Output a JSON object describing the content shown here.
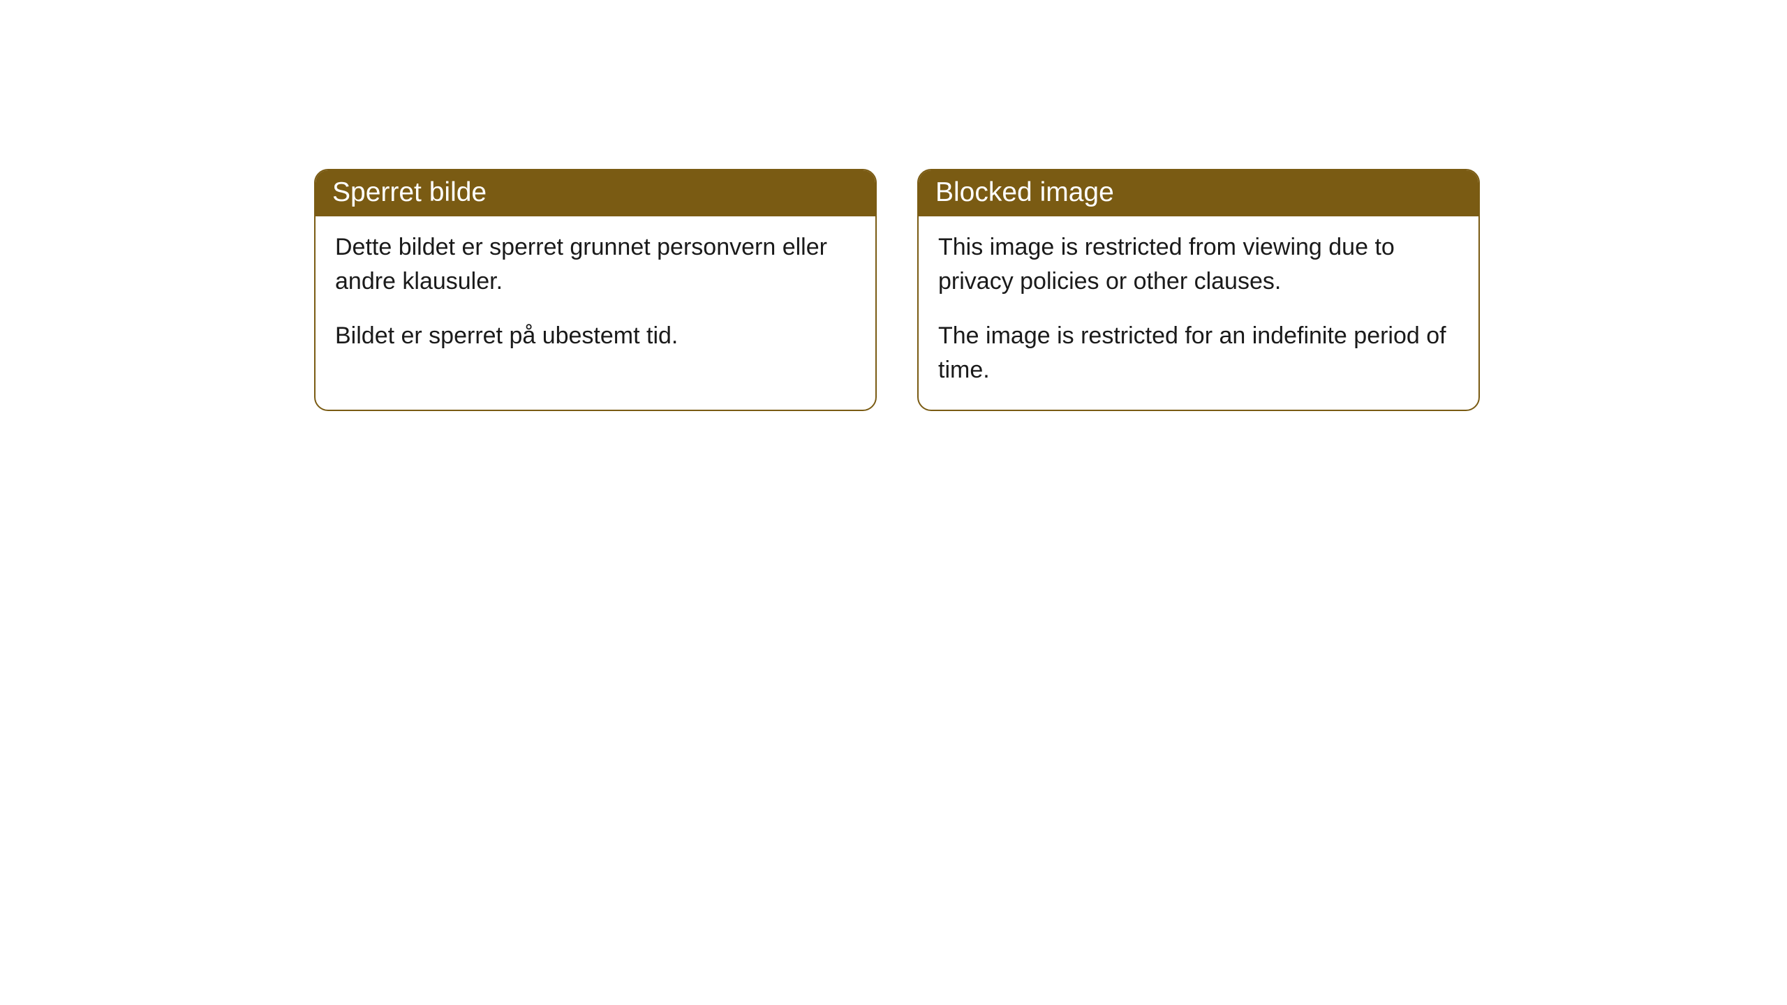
{
  "cards": [
    {
      "title": "Sperret bilde",
      "paragraph1": "Dette bildet er sperret grunnet personvern eller andre klausuler.",
      "paragraph2": "Bildet er sperret på ubestemt tid."
    },
    {
      "title": "Blocked image",
      "paragraph1": "This image is restricted from viewing due to privacy policies or other clauses.",
      "paragraph2": "The image is restricted for an indefinite period of time."
    }
  ],
  "style": {
    "header_background": "#7a5b13",
    "header_text_color": "#ffffff",
    "border_color": "#7a5b13",
    "body_background": "#ffffff",
    "body_text_color": "#1a1a1a",
    "border_radius": 20,
    "title_fontsize": 39,
    "body_fontsize": 34
  }
}
